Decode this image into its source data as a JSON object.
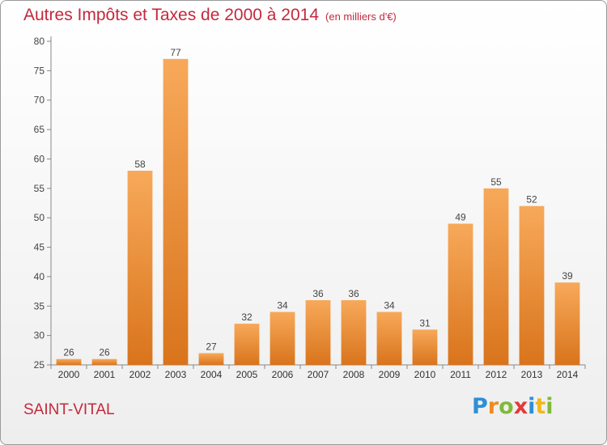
{
  "title": "Autres Impôts et Taxes de 2000 à 2014",
  "subtitle": "(en milliers d'€)",
  "place": "SAINT-VITAL",
  "brand": {
    "letters": [
      {
        "ch": "P",
        "color": "#2d8fd5"
      },
      {
        "ch": "r",
        "color": "#f08a1c"
      },
      {
        "ch": "o",
        "color": "#7fba3a"
      },
      {
        "ch": "x",
        "color": "#e23a3a"
      },
      {
        "ch": "i",
        "color": "#2d8fd5"
      },
      {
        "ch": "t",
        "color": "#f0b81c"
      },
      {
        "ch": "i",
        "color": "#7fba3a"
      }
    ]
  },
  "colors": {
    "bar_light": "#f7a95a",
    "bar_dark": "#d9741c",
    "title": "#c4283d"
  },
  "chart_data": {
    "type": "bar",
    "categories": [
      "2000",
      "2001",
      "2002",
      "2003",
      "2004",
      "2005",
      "2006",
      "2007",
      "2008",
      "2009",
      "2010",
      "2011",
      "2012",
      "2013",
      "2014"
    ],
    "values": [
      26,
      26,
      58,
      77,
      27,
      32,
      34,
      36,
      36,
      34,
      31,
      49,
      55,
      52,
      39
    ],
    "ylim": [
      25,
      80
    ],
    "yticks": [
      25,
      30,
      35,
      40,
      45,
      50,
      55,
      60,
      65,
      70,
      75,
      80
    ],
    "grid": false,
    "xlabel": "",
    "ylabel": ""
  }
}
